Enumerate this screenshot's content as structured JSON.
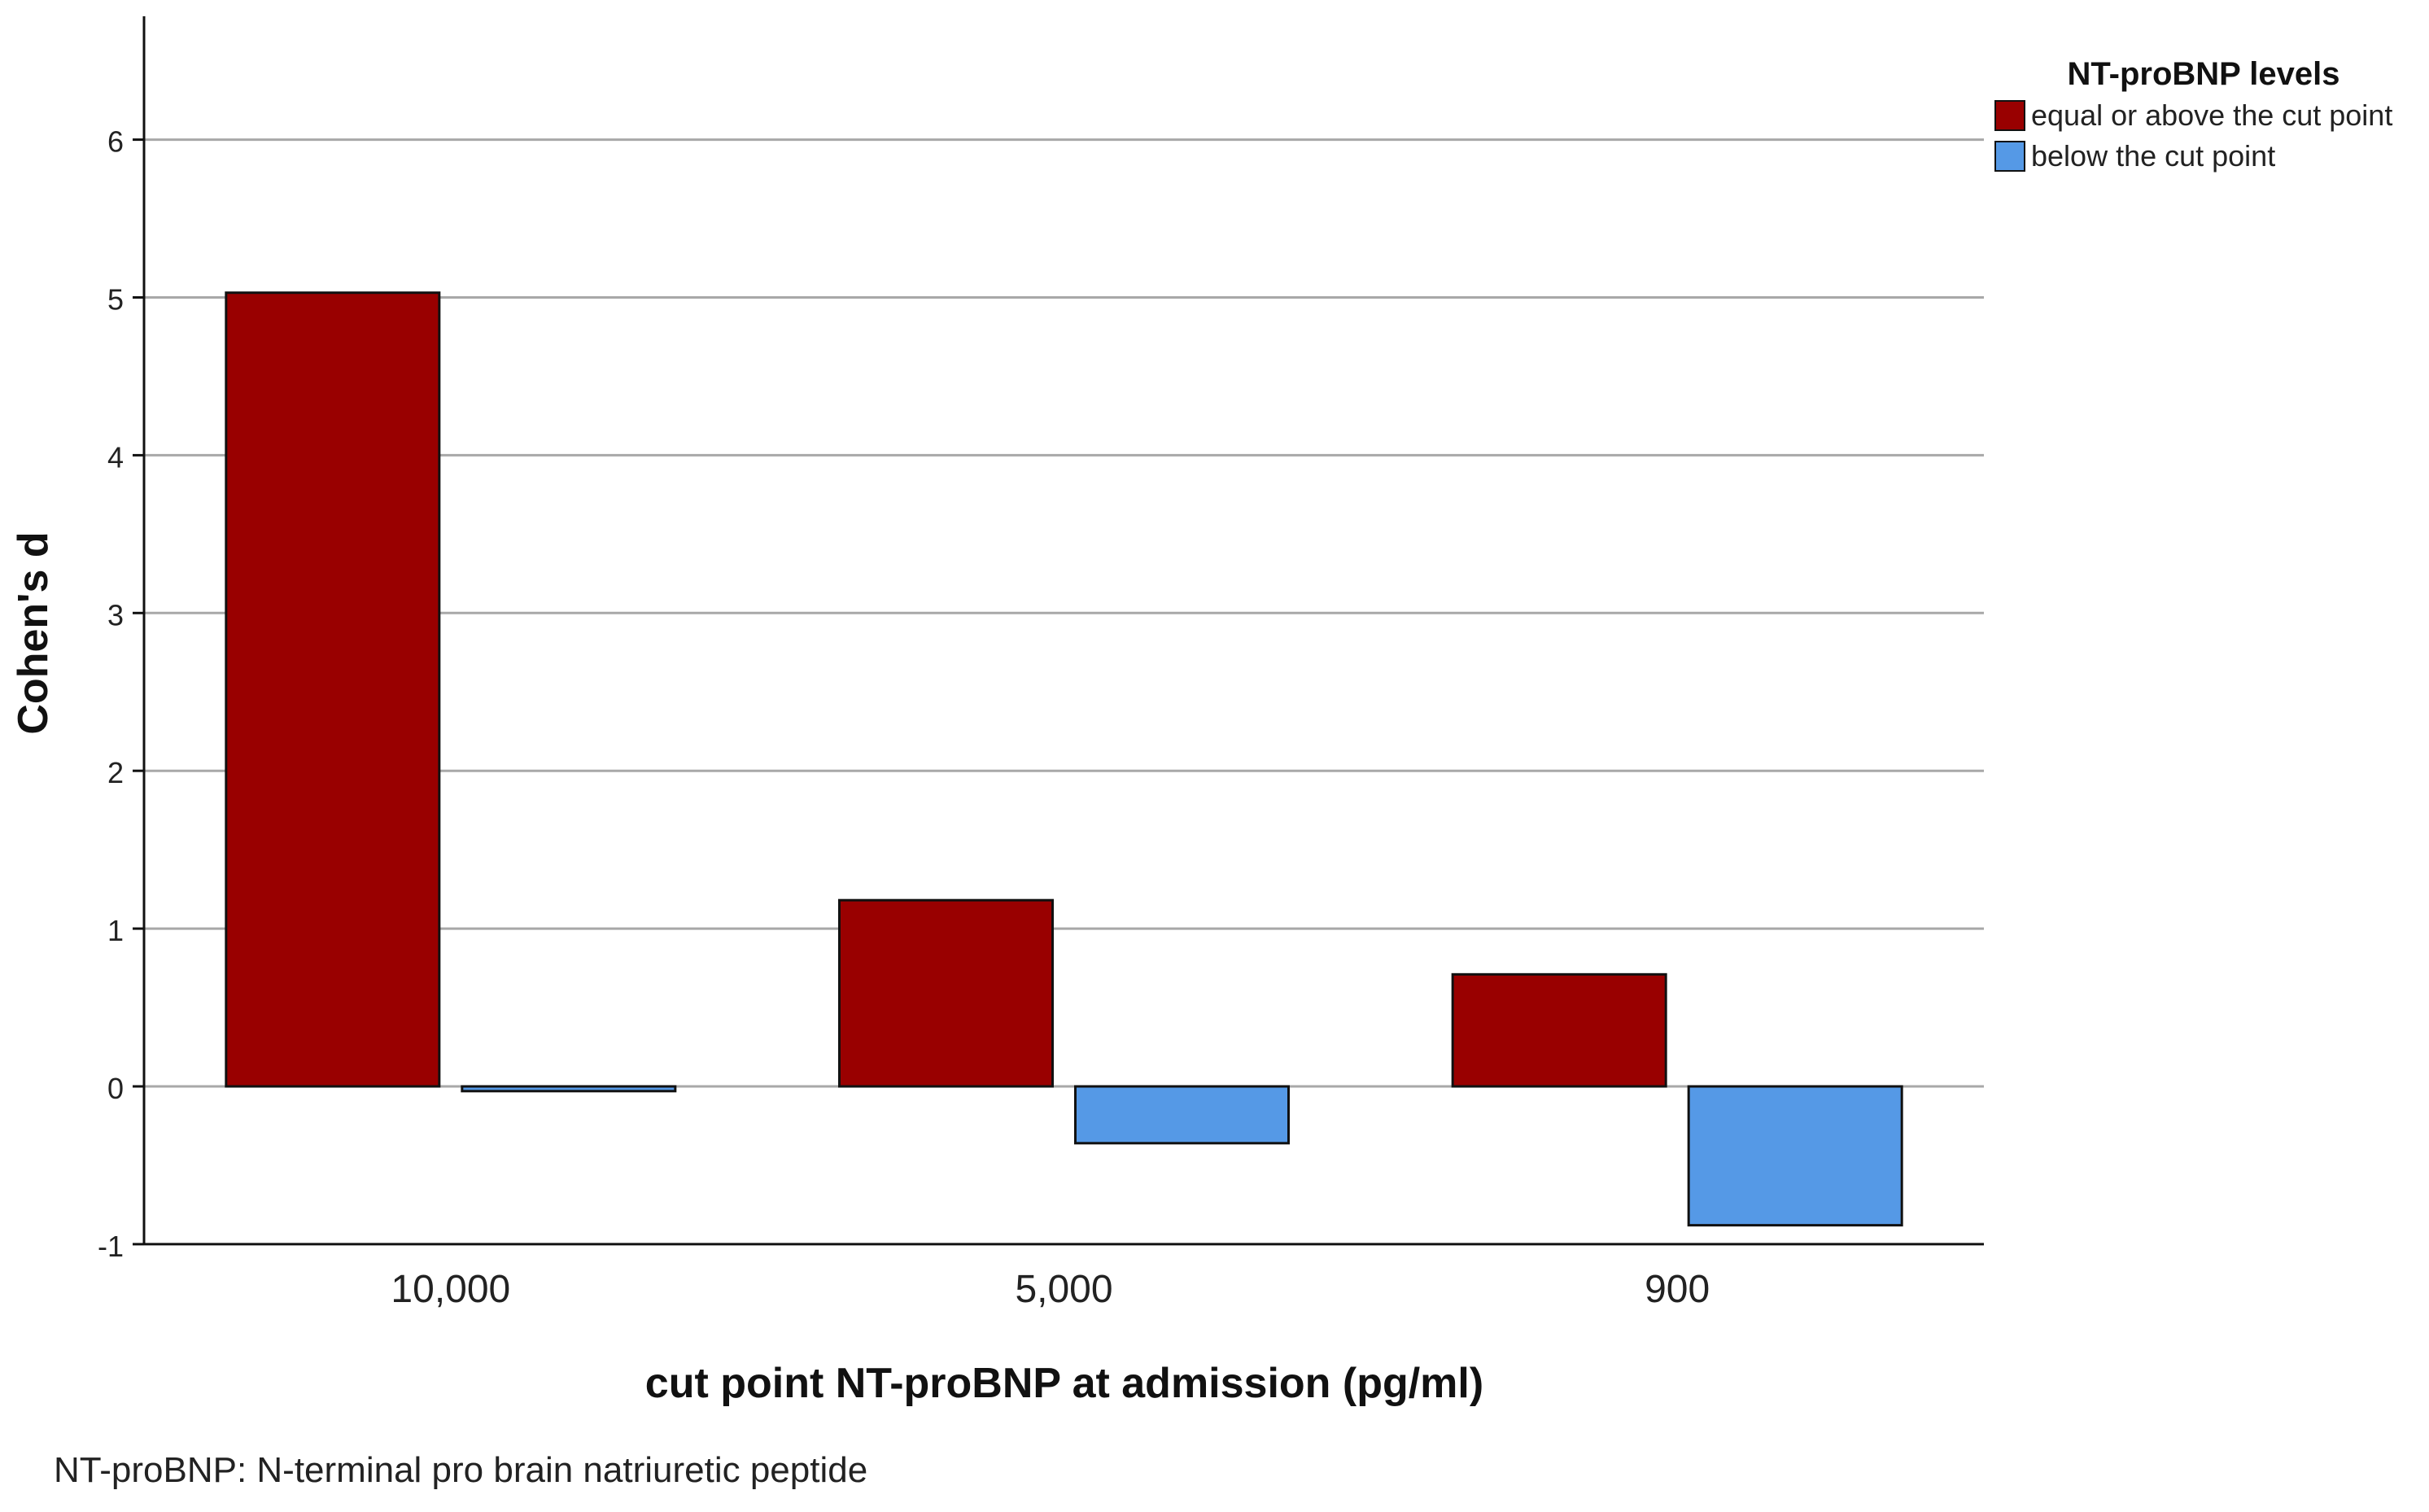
{
  "chart_data": {
    "type": "bar",
    "title": "",
    "xlabel": "cut point NT-proBNP at admission (pg/ml)",
    "ylabel": "Cohen's d",
    "categories": [
      "10,000",
      "5,000",
      "900"
    ],
    "series": [
      {
        "name": "equal or above the cut point",
        "color": "#990000",
        "values": [
          5.03,
          1.18,
          0.71
        ]
      },
      {
        "name": "below the cut point",
        "color": "#5599E6",
        "values": [
          -0.03,
          -0.36,
          -0.88
        ]
      }
    ],
    "ylim": [
      -1,
      7
    ],
    "yticks": [
      -1,
      0,
      1,
      2,
      3,
      4,
      5,
      6
    ],
    "grid": true,
    "legend": {
      "title": "NT-proBNP levels",
      "position": "top-right"
    }
  },
  "footnote": "NT-proBNP: N-terminal pro brain natriuretic peptide"
}
